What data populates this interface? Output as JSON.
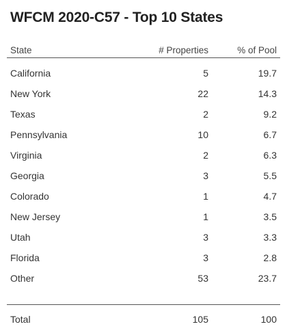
{
  "title": "WFCM 2020-C57 - Top 10 States",
  "headers": {
    "state": "State",
    "properties": "# Properties",
    "pct": "% of Pool"
  },
  "rows": [
    {
      "state": "California",
      "properties": "5",
      "pct": "19.7"
    },
    {
      "state": "New York",
      "properties": "22",
      "pct": "14.3"
    },
    {
      "state": "Texas",
      "properties": "2",
      "pct": "9.2"
    },
    {
      "state": "Pennsylvania",
      "properties": "10",
      "pct": "6.7"
    },
    {
      "state": "Virginia",
      "properties": "2",
      "pct": "6.3"
    },
    {
      "state": "Georgia",
      "properties": "3",
      "pct": "5.5"
    },
    {
      "state": "Colorado",
      "properties": "1",
      "pct": "4.7"
    },
    {
      "state": "New Jersey",
      "properties": "1",
      "pct": "3.5"
    },
    {
      "state": "Utah",
      "properties": "3",
      "pct": "3.3"
    },
    {
      "state": "Florida",
      "properties": "3",
      "pct": "2.8"
    },
    {
      "state": "Other",
      "properties": "53",
      "pct": "23.7"
    }
  ],
  "total": {
    "label": "Total",
    "properties": "105",
    "pct": "100"
  }
}
